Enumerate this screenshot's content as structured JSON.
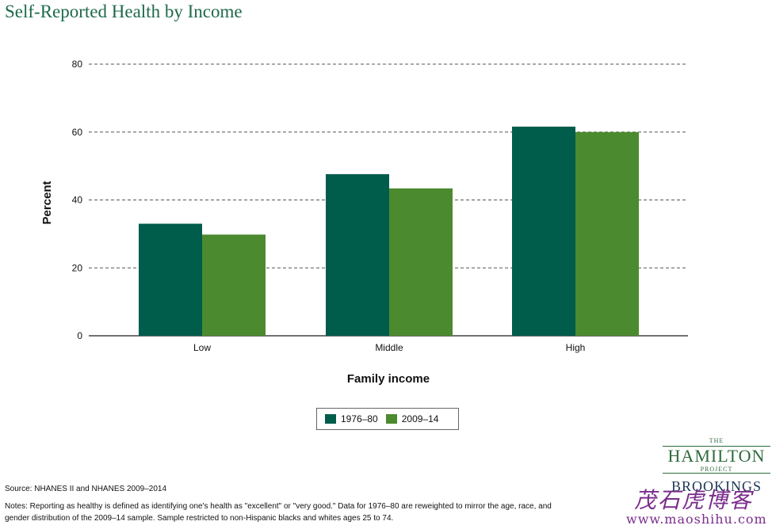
{
  "chart_data": {
    "type": "bar",
    "title": "Self-Reported Health by Income",
    "xlabel": "Family income",
    "ylabel": "Percent",
    "categories": [
      "Low",
      "Middle",
      "High"
    ],
    "series": [
      {
        "name": "1976–80",
        "values": [
          33,
          47.6,
          61.6
        ]
      },
      {
        "name": "2009–14",
        "values": [
          29.8,
          43.4,
          60
        ]
      }
    ],
    "ylim": [
      0,
      80
    ],
    "yticks": [
      0,
      20,
      40,
      60,
      80
    ],
    "grid": "horizontal dashed",
    "legend": "bottom-center"
  },
  "colors": {
    "series_1": "#005c4b",
    "series_2": "#4b8a2e",
    "title": "#1e6a4a"
  },
  "source": "Source: NHANES II and NHANES 2009–2014",
  "notes": "Notes: Reporting as healthy is defined as identifying one's health as \"excellent\" or \"very good.\" Data for 1976–80 are reweighted to mirror the age, race, and gender distribution of the 2009–14 sample. Sample restricted to non-Hispanic blacks and whites ages 25 to 74.",
  "logo": {
    "the": "THE",
    "hamilton": "HAMILTON",
    "project": "PROJECT",
    "brookings": "BROOKINGS"
  },
  "watermark": {
    "chinese": "茂石虎博客",
    "url": "www.maoshihu.com"
  }
}
